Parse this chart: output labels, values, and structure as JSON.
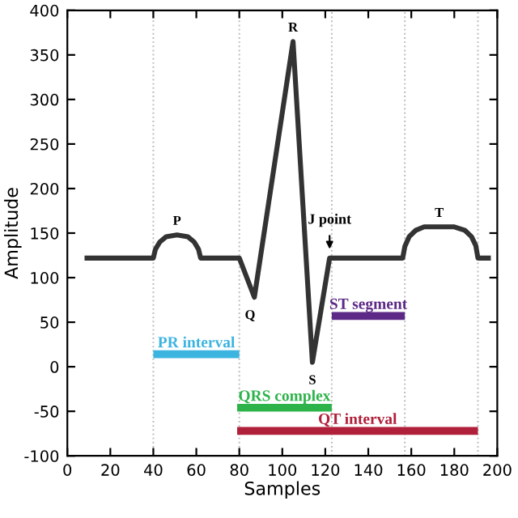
{
  "chart_data": {
    "type": "line",
    "xlabel": "Samples",
    "ylabel": "Amplitude",
    "xlim": [
      0,
      200
    ],
    "ylim": [
      -100,
      400
    ],
    "xticks": [
      0,
      20,
      40,
      60,
      80,
      100,
      120,
      140,
      160,
      180,
      200
    ],
    "yticks": [
      -100,
      -50,
      0,
      50,
      100,
      150,
      200,
      250,
      300,
      350,
      400
    ],
    "grid": false,
    "legend": false,
    "marker": "none",
    "line_style": "solid",
    "series": [
      {
        "color": "#333333",
        "x": [
          8,
          40,
          41,
          43,
          46,
          51,
          56,
          59,
          61,
          62,
          80,
          87,
          105,
          114,
          122,
          156,
          157,
          159,
          162,
          166,
          180,
          185,
          188,
          190,
          191,
          197
        ],
        "values": [
          122,
          122,
          132,
          140,
          146,
          148,
          146,
          140,
          132,
          122,
          122,
          78,
          365,
          5,
          122,
          122,
          135,
          146,
          153,
          157,
          157,
          153,
          146,
          136,
          122,
          122
        ]
      },
      {
        "name": "PR interval",
        "color": "#3cb4e0",
        "x": [
          40,
          80
        ],
        "values": [
          14,
          14
        ]
      },
      {
        "name": "QRS complex",
        "color": "#2db34a",
        "x": [
          79,
          123
        ],
        "values": [
          -46,
          -46
        ]
      },
      {
        "name": "QT interval",
        "color": "#b0203a",
        "x": [
          79,
          191
        ],
        "values": [
          -72,
          -72
        ]
      },
      {
        "name": "ST segment",
        "color": "#5c2a86",
        "x": [
          123,
          157
        ],
        "values": [
          57,
          57
        ]
      }
    ],
    "ref_lines": [
      {
        "axis": "x",
        "value": 40,
        "color": "#bbbbbb",
        "line_style": "dotted"
      },
      {
        "axis": "x",
        "value": 80,
        "color": "#bbbbbb",
        "line_style": "dotted"
      },
      {
        "axis": "x",
        "value": 123,
        "color": "#bbbbbb",
        "line_style": "dotted"
      },
      {
        "axis": "x",
        "value": 157,
        "color": "#bbbbbb",
        "line_style": "dotted"
      },
      {
        "axis": "x",
        "value": 191,
        "color": "#bbbbbb",
        "line_style": "dotted"
      }
    ],
    "annotations": [
      {
        "text": "P",
        "x": 51,
        "y": 148
      },
      {
        "text": "Q",
        "x": 87,
        "y": 78
      },
      {
        "text": "R",
        "x": 105,
        "y": 365
      },
      {
        "text": "S",
        "x": 114,
        "y": 5
      },
      {
        "text": "T",
        "x": 173,
        "y": 157
      },
      {
        "text": "J point",
        "x": 122,
        "y": 122
      }
    ]
  }
}
